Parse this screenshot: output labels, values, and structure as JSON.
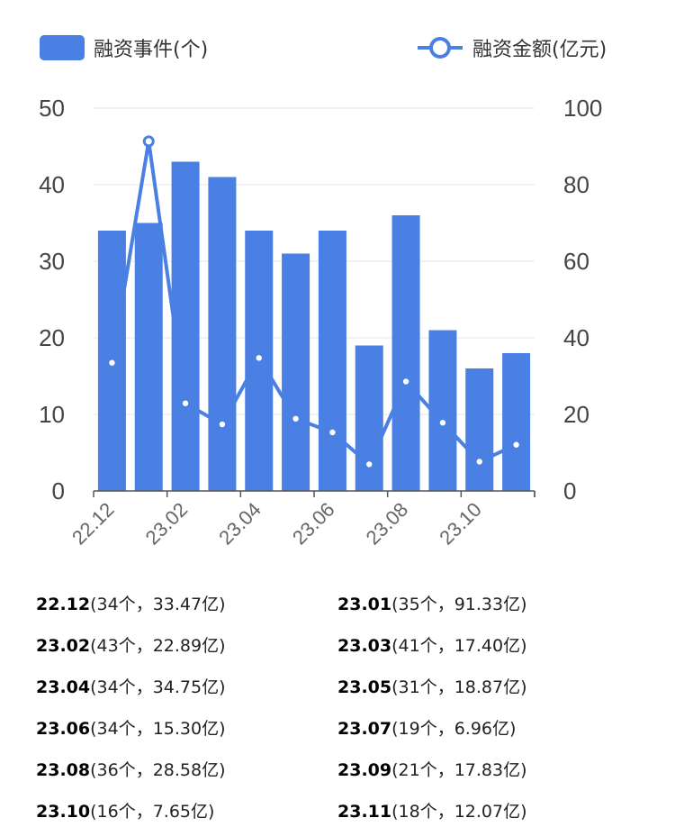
{
  "legend": {
    "bar_label": "融资事件(个)",
    "line_label": "融资金额(亿元)"
  },
  "colors": {
    "bar": "#4a7fe3",
    "line": "#4a7fe3",
    "grid": "#e6e6e6",
    "axis": "#555555"
  },
  "chart_data": {
    "type": "bar",
    "categories": [
      "22.12",
      "23.01",
      "23.02",
      "23.03",
      "23.04",
      "23.05",
      "23.06",
      "23.07",
      "23.08",
      "23.09",
      "23.10",
      "23.11"
    ],
    "tick_labels": [
      "22.12",
      "23.02",
      "23.04",
      "23.06",
      "23.08",
      "23.10"
    ],
    "left_axis": {
      "ylim": [
        0,
        50
      ],
      "ticks": [
        "0",
        "10",
        "20",
        "30",
        "40",
        "50"
      ]
    },
    "right_axis": {
      "ylim": [
        0,
        100
      ],
      "ticks": [
        "0",
        "20",
        "40",
        "60",
        "80",
        "100"
      ]
    },
    "series": [
      {
        "name": "融资事件(个)",
        "type": "bar",
        "axis": "left",
        "values": [
          34,
          35,
          43,
          41,
          34,
          31,
          34,
          19,
          36,
          21,
          16,
          18
        ]
      },
      {
        "name": "融资金额(亿元)",
        "type": "line",
        "axis": "right",
        "values": [
          33.47,
          91.33,
          22.89,
          17.4,
          34.75,
          18.87,
          15.3,
          6.96,
          28.58,
          17.83,
          7.65,
          12.07
        ]
      }
    ],
    "grid": true,
    "legend_position": "top"
  },
  "details": [
    {
      "month": "22.12",
      "info": "(34个，33.47亿)"
    },
    {
      "month": "23.01",
      "info": "(35个，91.33亿)"
    },
    {
      "month": "23.02",
      "info": "(43个，22.89亿)"
    },
    {
      "month": "23.03",
      "info": "(41个，17.40亿)"
    },
    {
      "month": "23.04",
      "info": "(34个，34.75亿)"
    },
    {
      "month": "23.05",
      "info": "(31个，18.87亿)"
    },
    {
      "month": "23.06",
      "info": "(34个，15.30亿)"
    },
    {
      "month": "23.07",
      "info": "(19个，6.96亿)"
    },
    {
      "month": "23.08",
      "info": "(36个，28.58亿)"
    },
    {
      "month": "23.09",
      "info": "(21个，17.83亿)"
    },
    {
      "month": "23.10",
      "info": "(16个，7.65亿)"
    },
    {
      "month": "23.11",
      "info": "(18个，12.07亿)"
    }
  ]
}
